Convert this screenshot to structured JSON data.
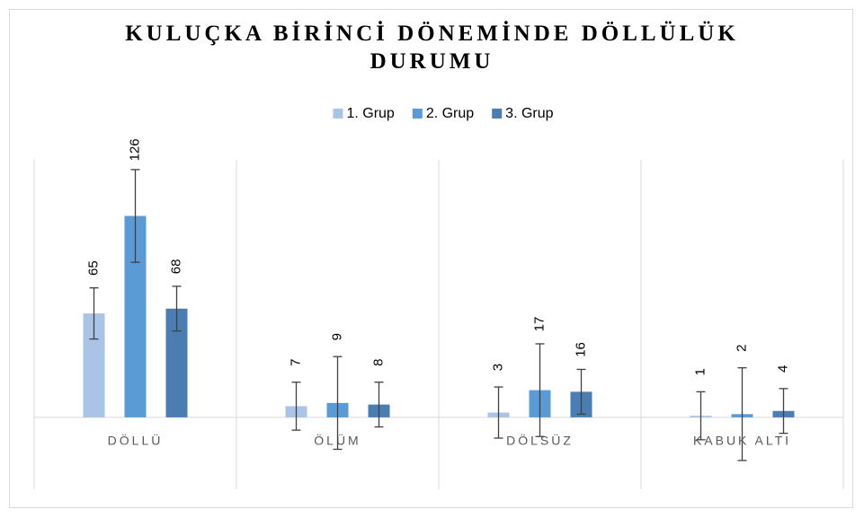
{
  "chart_data": {
    "type": "bar",
    "title": "KULUÇKA BİRİNCİ DÖNEMİNDE DÖLLÜLÜK DURUMU",
    "categories": [
      "DÖLLÜ",
      "ÖLÜM",
      "DÖLSÜZ",
      "KABUK ALTI"
    ],
    "series": [
      {
        "name": "1. Grup",
        "color": "#a9c4e6",
        "values": [
          65,
          7,
          3,
          1
        ],
        "errors": [
          16,
          15,
          16,
          15
        ]
      },
      {
        "name": "2. Grup",
        "color": "#5b9bd5",
        "values": [
          126,
          9,
          17,
          2
        ],
        "errors": [
          29,
          29,
          29,
          29
        ]
      },
      {
        "name": "3. Grup",
        "color": "#4a7eb3",
        "values": [
          68,
          8,
          16,
          4
        ],
        "errors": [
          14,
          14,
          14,
          14
        ]
      }
    ],
    "ylim": [
      -45,
      160
    ],
    "grid": true,
    "legend": "top"
  }
}
